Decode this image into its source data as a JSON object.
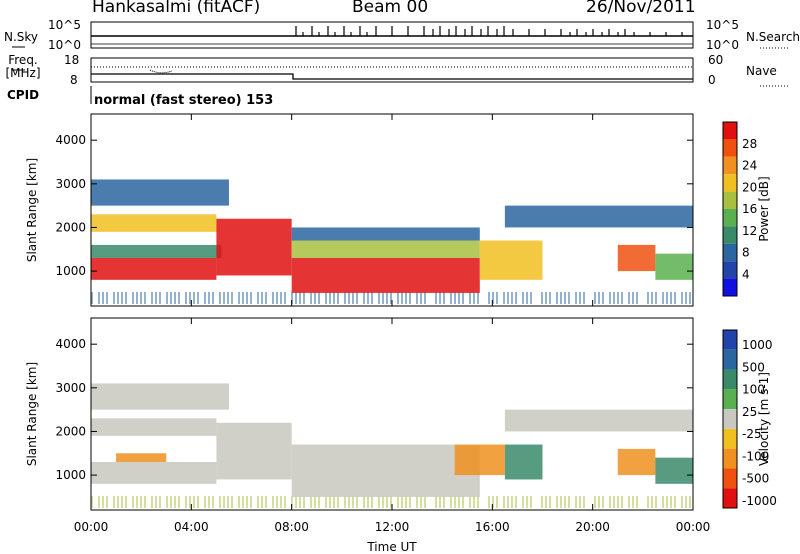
{
  "header": {
    "station": "Hankasalmi (fitACF)",
    "beam": "Beam 00",
    "date": "26/Nov/2011"
  },
  "noise_panel": {
    "left_label": "N.Sky",
    "left_ticks": [
      "10^5",
      "10^0"
    ],
    "right_ticks": [
      "10^5",
      "10^0"
    ],
    "right_label": "N.Search"
  },
  "freq_panel": {
    "left_label": "Freq. [MHz]",
    "left_ticks": [
      "18",
      "8"
    ],
    "right_ticks": [
      "60",
      "0"
    ],
    "right_label": "Nave"
  },
  "cpid": {
    "label": "CPID",
    "mode_text": "normal (fast stereo) 153"
  },
  "colors": {
    "ground_scatter": "#c8c8c0",
    "power_scale": [
      "#1010e0",
      "#2244aa",
      "#2a66a0",
      "#3a8a6a",
      "#5ab050",
      "#a8c040",
      "#f0c020",
      "#f09020",
      "#f05010",
      "#e01010"
    ],
    "velocity_scale": [
      "#e01010",
      "#f05010",
      "#f09020",
      "#f0c020",
      "#c8c8c0",
      "#5ab050",
      "#3a8a6a",
      "#2a66a0",
      "#2244aa"
    ]
  },
  "chart_data": [
    {
      "type": "heatmap",
      "panel": "power",
      "ylabel": "Slant Range [km]",
      "ylim": [
        200,
        4600
      ],
      "yticks": [
        "1000",
        "2000",
        "3000",
        "4000"
      ],
      "xlim": [
        0,
        24
      ],
      "colorbar_label": "Power [dB]",
      "colorbar_ticks": [
        "4",
        "8",
        "12",
        "16",
        "20",
        "24",
        "28"
      ],
      "bands": [
        {
          "t0": 0.0,
          "t1": 5.0,
          "r0": 800,
          "r1": 1300,
          "level": 9
        },
        {
          "t0": 0.0,
          "t1": 5.2,
          "r0": 1300,
          "r1": 1600,
          "level": 3
        },
        {
          "t0": 0.0,
          "t1": 5.0,
          "r0": 1900,
          "r1": 2300,
          "level": 6
        },
        {
          "t0": 0.0,
          "t1": 5.5,
          "r0": 2500,
          "r1": 3100,
          "level": 2
        },
        {
          "t0": 5.0,
          "t1": 8.0,
          "r0": 900,
          "r1": 2200,
          "level": 9
        },
        {
          "t0": 8.0,
          "t1": 15.5,
          "r0": 500,
          "r1": 1300,
          "level": 9
        },
        {
          "t0": 8.0,
          "t1": 15.5,
          "r0": 1300,
          "r1": 1700,
          "level": 5
        },
        {
          "t0": 8.0,
          "t1": 15.5,
          "r0": 1700,
          "r1": 2000,
          "level": 2
        },
        {
          "t0": 15.5,
          "t1": 18.0,
          "r0": 800,
          "r1": 1700,
          "level": 6
        },
        {
          "t0": 16.5,
          "t1": 24.0,
          "r0": 2000,
          "r1": 2500,
          "level": 2
        },
        {
          "t0": 21.0,
          "t1": 22.5,
          "r0": 1000,
          "r1": 1600,
          "level": 8
        },
        {
          "t0": 22.5,
          "t1": 24.0,
          "r0": 800,
          "r1": 1400,
          "level": 4
        }
      ]
    },
    {
      "type": "heatmap",
      "panel": "velocity",
      "ylabel": "Slant Range [km]",
      "ylim": [
        200,
        4600
      ],
      "yticks": [
        "1000",
        "2000",
        "3000",
        "4000"
      ],
      "xlim": [
        0,
        24
      ],
      "xlabel": "Time UT",
      "xticks": [
        "00:00",
        "04:00",
        "08:00",
        "12:00",
        "16:00",
        "20:00",
        "00:00"
      ],
      "colorbar_label": "Velocity [m s-1]",
      "colorbar_ticks": [
        "1000",
        "500",
        "100",
        "25",
        "-25",
        "-100",
        "-500",
        "-1000"
      ],
      "bands": [
        {
          "t0": 0.0,
          "t1": 5.0,
          "r0": 800,
          "r1": 1300,
          "level": 4
        },
        {
          "t0": 0.0,
          "t1": 5.0,
          "r0": 1900,
          "r1": 2300,
          "level": 4
        },
        {
          "t0": 0.0,
          "t1": 5.5,
          "r0": 2500,
          "r1": 3100,
          "level": 4
        },
        {
          "t0": 1.0,
          "t1": 3.0,
          "r0": 1300,
          "r1": 1500,
          "level": 2
        },
        {
          "t0": 5.0,
          "t1": 8.0,
          "r0": 900,
          "r1": 2200,
          "level": 4
        },
        {
          "t0": 8.0,
          "t1": 15.5,
          "r0": 500,
          "r1": 1700,
          "level": 4
        },
        {
          "t0": 14.5,
          "t1": 16.5,
          "r0": 1000,
          "r1": 1700,
          "level": 2
        },
        {
          "t0": 16.5,
          "t1": 18.0,
          "r0": 900,
          "r1": 1700,
          "level": 6
        },
        {
          "t0": 21.0,
          "t1": 22.5,
          "r0": 1000,
          "r1": 1600,
          "level": 2
        },
        {
          "t0": 22.5,
          "t1": 24.0,
          "r0": 800,
          "r1": 1400,
          "level": 6
        },
        {
          "t0": 16.5,
          "t1": 24.0,
          "r0": 2000,
          "r1": 2500,
          "level": 4
        }
      ]
    }
  ]
}
